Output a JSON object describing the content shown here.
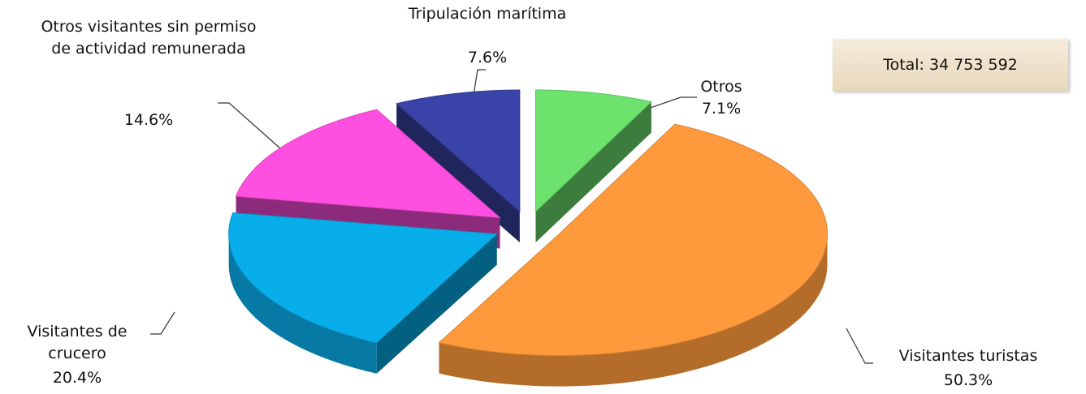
{
  "chart_data": {
    "type": "pie",
    "total": "Total: 34 753 592",
    "categories": [
      "Otros",
      "Visitantes turistas",
      "Visitantes de crucero",
      "Otros visitantes sin permiso de actividad remunerada",
      "Tripulación marítima"
    ],
    "values": [
      7.1,
      50.3,
      20.4,
      14.6,
      7.6
    ],
    "value_labels": [
      "7.1%",
      "50.3%",
      "20.4%",
      "14.6%",
      "7.6%"
    ],
    "colors": [
      "#6de26d",
      "#ff9a3c",
      "#08aeea",
      "#ff4fe0",
      "#3a44a8"
    ]
  }
}
